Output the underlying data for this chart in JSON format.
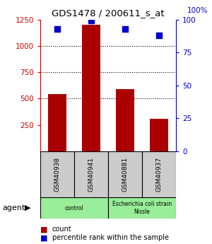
{
  "title": "GDS1478 / 200611_s_at",
  "samples": [
    "GSM40938",
    "GSM40941",
    "GSM40881",
    "GSM40937"
  ],
  "counts": [
    540,
    1200,
    590,
    305
  ],
  "percentiles": [
    93,
    99,
    93,
    88
  ],
  "ylim_left": [
    0,
    1250
  ],
  "ylim_right": [
    0,
    100
  ],
  "yticks_left": [
    250,
    500,
    750,
    1000,
    1250
  ],
  "yticks_right": [
    0,
    25,
    50,
    75,
    100
  ],
  "bar_color": "#aa0000",
  "dot_color": "#0000cc",
  "sample_box_color": "#cccccc",
  "agent_groups": [
    {
      "label": "control",
      "span": [
        0,
        2
      ],
      "color": "#99ee99"
    },
    {
      "label": "Escherichia coli strain\nNissle",
      "span": [
        2,
        4
      ],
      "color": "#99ee99"
    }
  ],
  "legend_red_label": "count",
  "legend_blue_label": "percentile rank within the sample",
  "axis_left_color": "#cc0000",
  "axis_right_color": "#0000cc",
  "bar_width": 0.55,
  "dot_size": 28,
  "background_color": "#ffffff"
}
